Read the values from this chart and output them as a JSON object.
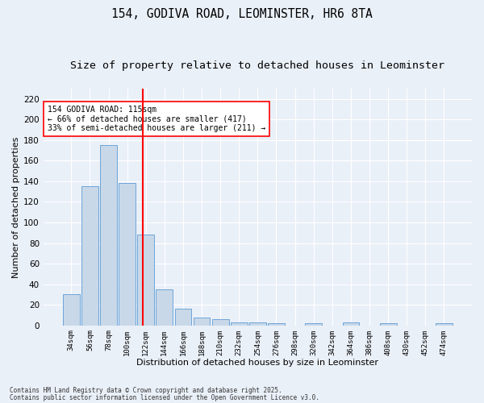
{
  "title_line1": "154, GODIVA ROAD, LEOMINSTER, HR6 8TA",
  "title_line2": "Size of property relative to detached houses in Leominster",
  "xlabel": "Distribution of detached houses by size in Leominster",
  "ylabel": "Number of detached properties",
  "bar_color": "#c8d8e8",
  "bar_edge_color": "#5b9bd5",
  "vline_color": "red",
  "annotation_title": "154 GODIVA ROAD: 115sqm",
  "annotation_line1": "← 66% of detached houses are smaller (417)",
  "annotation_line2": "33% of semi-detached houses are larger (211) →",
  "footnote1": "Contains HM Land Registry data © Crown copyright and database right 2025.",
  "footnote2": "Contains public sector information licensed under the Open Government Licence v3.0.",
  "categories": [
    "34sqm",
    "56sqm",
    "78sqm",
    "100sqm",
    "122sqm",
    "144sqm",
    "166sqm",
    "188sqm",
    "210sqm",
    "232sqm",
    "254sqm",
    "276sqm",
    "298sqm",
    "320sqm",
    "342sqm",
    "364sqm",
    "386sqm",
    "408sqm",
    "430sqm",
    "452sqm",
    "474sqm"
  ],
  "values": [
    30,
    135,
    175,
    138,
    88,
    35,
    16,
    8,
    6,
    3,
    3,
    2,
    0,
    2,
    0,
    3,
    0,
    2,
    0,
    0,
    2
  ],
  "ylim": [
    0,
    230
  ],
  "yticks": [
    0,
    20,
    40,
    60,
    80,
    100,
    120,
    140,
    160,
    180,
    200,
    220
  ],
  "background_color": "#eaf0f8",
  "plot_background_color": "#eaf0f8",
  "grid_color": "#ffffff",
  "title_fontsize": 10.5,
  "subtitle_fontsize": 9.5,
  "vline_x_index": 3.82
}
